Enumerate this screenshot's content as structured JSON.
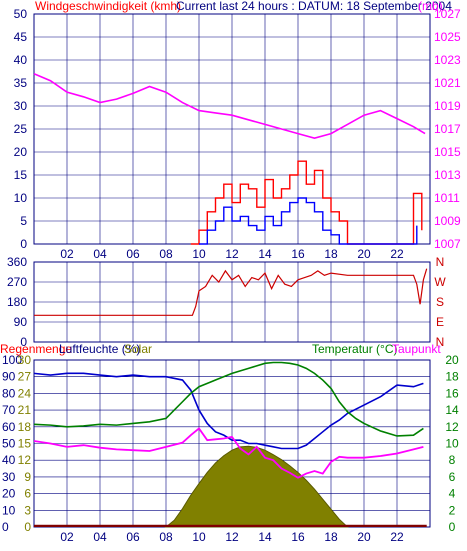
{
  "colors": {
    "wind": "#ff0000",
    "gust": "#0000ff",
    "pressure": "#ff00ff",
    "direction": "#cc0000",
    "humidity": "#0000cc",
    "temperature": "#008000",
    "dewpoint": "#ff00ff",
    "solar": "#808000",
    "rain": "#800000",
    "grid": "#000080",
    "label": "#000080"
  },
  "chart_data": [
    {
      "type": "line",
      "title": "Current last 24 hours : DATUM: 18 September 2004",
      "left_label": "Windgeschwindigkeit (kmh)",
      "right_label": "(mb)",
      "x_ticks": [
        "02",
        "04",
        "06",
        "08",
        "10",
        "12",
        "14",
        "16",
        "18",
        "20",
        "22"
      ],
      "y_ticks_left": [
        "50",
        "45",
        "40",
        "35",
        "30",
        "25",
        "20",
        "15",
        "10",
        "5",
        "0"
      ],
      "y_ticks_right": [
        "1027",
        "1025",
        "1023",
        "1021",
        "1019",
        "1017",
        "1015",
        "1013",
        "1011",
        "1009",
        "1007"
      ],
      "ylim_left": [
        0,
        50
      ],
      "ylim_right": [
        1007,
        1027
      ],
      "grid": true,
      "series": [
        {
          "key": "pressure",
          "axis": "right",
          "x": [
            0,
            1,
            2,
            3,
            4,
            5,
            6,
            7,
            8,
            9,
            10,
            11,
            12,
            13,
            14,
            15,
            16,
            17,
            18,
            19,
            20,
            21,
            22,
            23,
            23.7
          ],
          "values": [
            1021.8,
            1021.2,
            1020.2,
            1019.8,
            1019.3,
            1019.6,
            1020.1,
            1020.7,
            1020.2,
            1019.3,
            1018.6,
            1018.4,
            1018.2,
            1017.8,
            1017.4,
            1017.0,
            1016.6,
            1016.2,
            1016.6,
            1017.4,
            1018.2,
            1018.6,
            1017.9,
            1017.2,
            1016.6
          ]
        },
        {
          "key": "wind",
          "axis": "left",
          "x": [
            9.5,
            10.0,
            10.5,
            11.0,
            11.5,
            12.0,
            12.5,
            13.0,
            13.5,
            14.0,
            14.5,
            15.0,
            15.5,
            16.0,
            16.5,
            17.0,
            17.5,
            18.0,
            18.5,
            19.0,
            22.5,
            23.0,
            23.5
          ],
          "values": [
            0,
            3,
            7,
            10,
            13,
            9,
            13,
            12,
            8,
            14,
            10,
            12,
            15,
            18,
            13,
            16,
            10,
            7,
            5,
            0,
            0,
            11,
            3
          ]
        },
        {
          "key": "gust",
          "axis": "left",
          "x": [
            10.0,
            10.5,
            11.0,
            11.5,
            12.0,
            12.5,
            13.0,
            13.5,
            14.0,
            14.5,
            15.0,
            15.5,
            16.0,
            16.5,
            17.0,
            17.5,
            18.0,
            18.5,
            22.8,
            23.2
          ],
          "values": [
            0,
            3,
            5,
            8,
            5,
            6,
            4,
            3,
            6,
            4,
            7,
            9,
            10,
            9,
            7,
            3,
            2,
            0,
            0,
            4
          ]
        }
      ]
    },
    {
      "type": "line",
      "y_ticks_left": [
        "360",
        "270",
        "180",
        "90",
        "0"
      ],
      "y_ticks_right": [
        "N",
        "W",
        "S",
        "E",
        "N"
      ],
      "ylim": [
        0,
        360
      ],
      "grid": true,
      "series": [
        {
          "key": "direction",
          "x": [
            0,
            9.6,
            9.8,
            10.0,
            10.4,
            10.8,
            11.2,
            11.6,
            12.0,
            12.4,
            12.8,
            13.2,
            13.6,
            14.0,
            14.4,
            14.8,
            15.2,
            15.6,
            16.0,
            16.4,
            16.8,
            17.2,
            17.6,
            18.0,
            19.0,
            20.0,
            21.0,
            22.0,
            23.0,
            23.2,
            23.4,
            23.6,
            23.8
          ],
          "values": [
            120,
            120,
            160,
            230,
            250,
            300,
            270,
            320,
            280,
            300,
            250,
            290,
            280,
            310,
            240,
            300,
            260,
            250,
            280,
            290,
            300,
            320,
            300,
            310,
            300,
            300,
            300,
            300,
            300,
            260,
            170,
            280,
            330
          ]
        }
      ]
    },
    {
      "type": "line",
      "left_labels": [
        "Regenmenge",
        "Luftfeuchte (%)",
        "Solar"
      ],
      "right_labels": [
        "Temperatur (°C)",
        "Taupunkt"
      ],
      "x_ticks": [
        "02",
        "04",
        "06",
        "08",
        "10",
        "12",
        "14",
        "16",
        "18",
        "20",
        "22"
      ],
      "y_ticks_humidity": [
        "100",
        "90",
        "80",
        "70",
        "60",
        "50",
        "40",
        "30",
        "20",
        "10",
        "0"
      ],
      "y_ticks_solar": [
        "30",
        "27",
        "24",
        "21",
        "18",
        "15",
        "12",
        "9",
        "6",
        "3",
        "0"
      ],
      "y_ticks_right": [
        "20",
        "18",
        "16",
        "14",
        "12",
        "10",
        "8",
        "6",
        "4",
        "2",
        "0"
      ],
      "ylim_humidity": [
        0,
        100
      ],
      "ylim_temperature": [
        0,
        20
      ],
      "grid": true,
      "series": [
        {
          "key": "humidity",
          "axis": "humidity",
          "x": [
            0,
            1,
            2,
            3,
            4,
            5,
            6,
            7,
            8,
            9,
            9.5,
            10,
            10.5,
            11,
            11.5,
            12,
            12.5,
            13,
            13.5,
            14,
            14.5,
            15,
            15.5,
            16,
            16.5,
            17,
            17.5,
            18,
            18.5,
            19,
            20,
            21,
            22,
            23,
            23.6
          ],
          "values": [
            92,
            91,
            92,
            92,
            91,
            90,
            91,
            90,
            90,
            88,
            82,
            70,
            62,
            57,
            55,
            52,
            52,
            50,
            50,
            49,
            48,
            47,
            47,
            47,
            49,
            53,
            57,
            61,
            64,
            68,
            73,
            78,
            85,
            84,
            86
          ]
        },
        {
          "key": "temperature",
          "axis": "temperature",
          "x": [
            0,
            1,
            2,
            3,
            4,
            5,
            6,
            7,
            8,
            8.5,
            9,
            9.5,
            10,
            11,
            12,
            13,
            14,
            14.5,
            15,
            15.5,
            16,
            16.5,
            17,
            17.5,
            18,
            18.5,
            19,
            19.5,
            20,
            21,
            22,
            23,
            23.6
          ],
          "values": [
            12.3,
            12.2,
            12.0,
            12.1,
            12.3,
            12.2,
            12.4,
            12.6,
            13.0,
            14.0,
            15.0,
            16.0,
            16.8,
            17.6,
            18.4,
            19.0,
            19.6,
            19.7,
            19.7,
            19.6,
            19.4,
            19.0,
            18.4,
            17.6,
            16.6,
            15.0,
            13.8,
            13.0,
            12.4,
            11.5,
            10.9,
            11.0,
            11.8
          ]
        },
        {
          "key": "dewpoint",
          "axis": "temperature",
          "x": [
            0,
            1,
            2,
            3,
            4,
            5,
            6,
            7,
            8,
            9,
            9.5,
            10,
            10.5,
            11,
            11.5,
            12,
            12.5,
            13,
            13.5,
            14,
            14.5,
            15,
            15.5,
            16,
            16.5,
            17,
            17.5,
            18,
            18.5,
            19,
            20,
            21,
            22,
            23,
            23.6
          ],
          "values": [
            10.3,
            10.0,
            9.6,
            9.8,
            9.5,
            9.3,
            9.2,
            9.1,
            9.6,
            10.1,
            11.0,
            11.8,
            10.4,
            10.5,
            10.6,
            10.8,
            9.4,
            8.7,
            9.6,
            8.3,
            8.0,
            7.0,
            6.5,
            5.9,
            6.4,
            6.7,
            6.4,
            7.8,
            8.4,
            8.3,
            8.3,
            8.5,
            8.8,
            9.3,
            9.6
          ]
        },
        {
          "key": "solar",
          "axis": "solar",
          "x": [
            8.0,
            8.5,
            9.0,
            9.5,
            10.0,
            10.5,
            11.0,
            11.5,
            12.0,
            12.5,
            13.0,
            13.5,
            14.0,
            14.5,
            15.0,
            15.5,
            16.0,
            16.5,
            17.0,
            17.5,
            18.0,
            18.5,
            19.0
          ],
          "values": [
            0,
            1.2,
            3.3,
            5.7,
            7.8,
            9.8,
            11.5,
            12.8,
            13.8,
            14.4,
            14.5,
            14.3,
            13.8,
            13.0,
            12.1,
            11.0,
            9.8,
            8.4,
            6.8,
            5.0,
            3.2,
            1.4,
            0
          ]
        },
        {
          "key": "rain",
          "axis": "solar",
          "x": [
            0,
            23.8
          ],
          "values": [
            0.4,
            0.4
          ]
        }
      ]
    }
  ]
}
